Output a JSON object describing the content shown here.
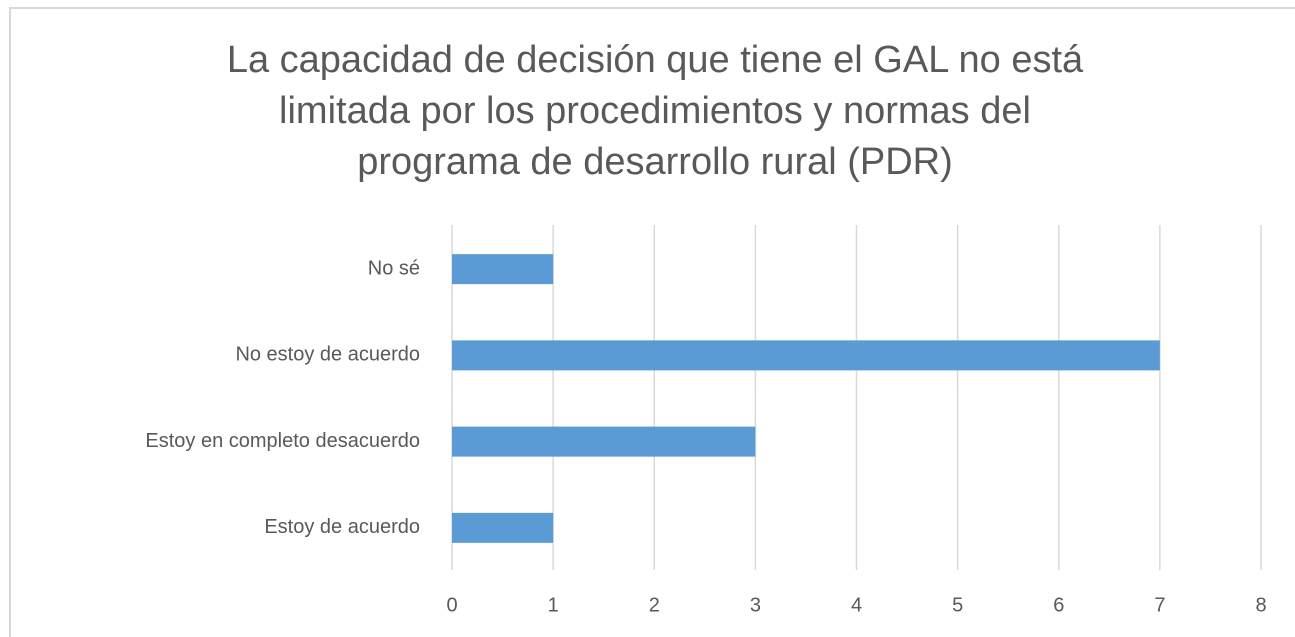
{
  "chart_data": {
    "type": "barh",
    "title": [
      "La capacidad de decisión que tiene el GAL no está",
      "limitada por los procedimientos y normas del",
      "programa de desarrollo rural (PDR)"
    ],
    "categories": [
      "No sé",
      "No estoy de acuerdo",
      "Estoy en completo desacuerdo",
      "Estoy de acuerdo"
    ],
    "values": [
      1,
      7,
      3,
      1
    ],
    "color": "#5b9bd5",
    "xlim": [
      0,
      8
    ],
    "xticks": [
      0,
      1,
      2,
      3,
      4,
      5,
      6,
      7,
      8
    ],
    "grid": true
  }
}
